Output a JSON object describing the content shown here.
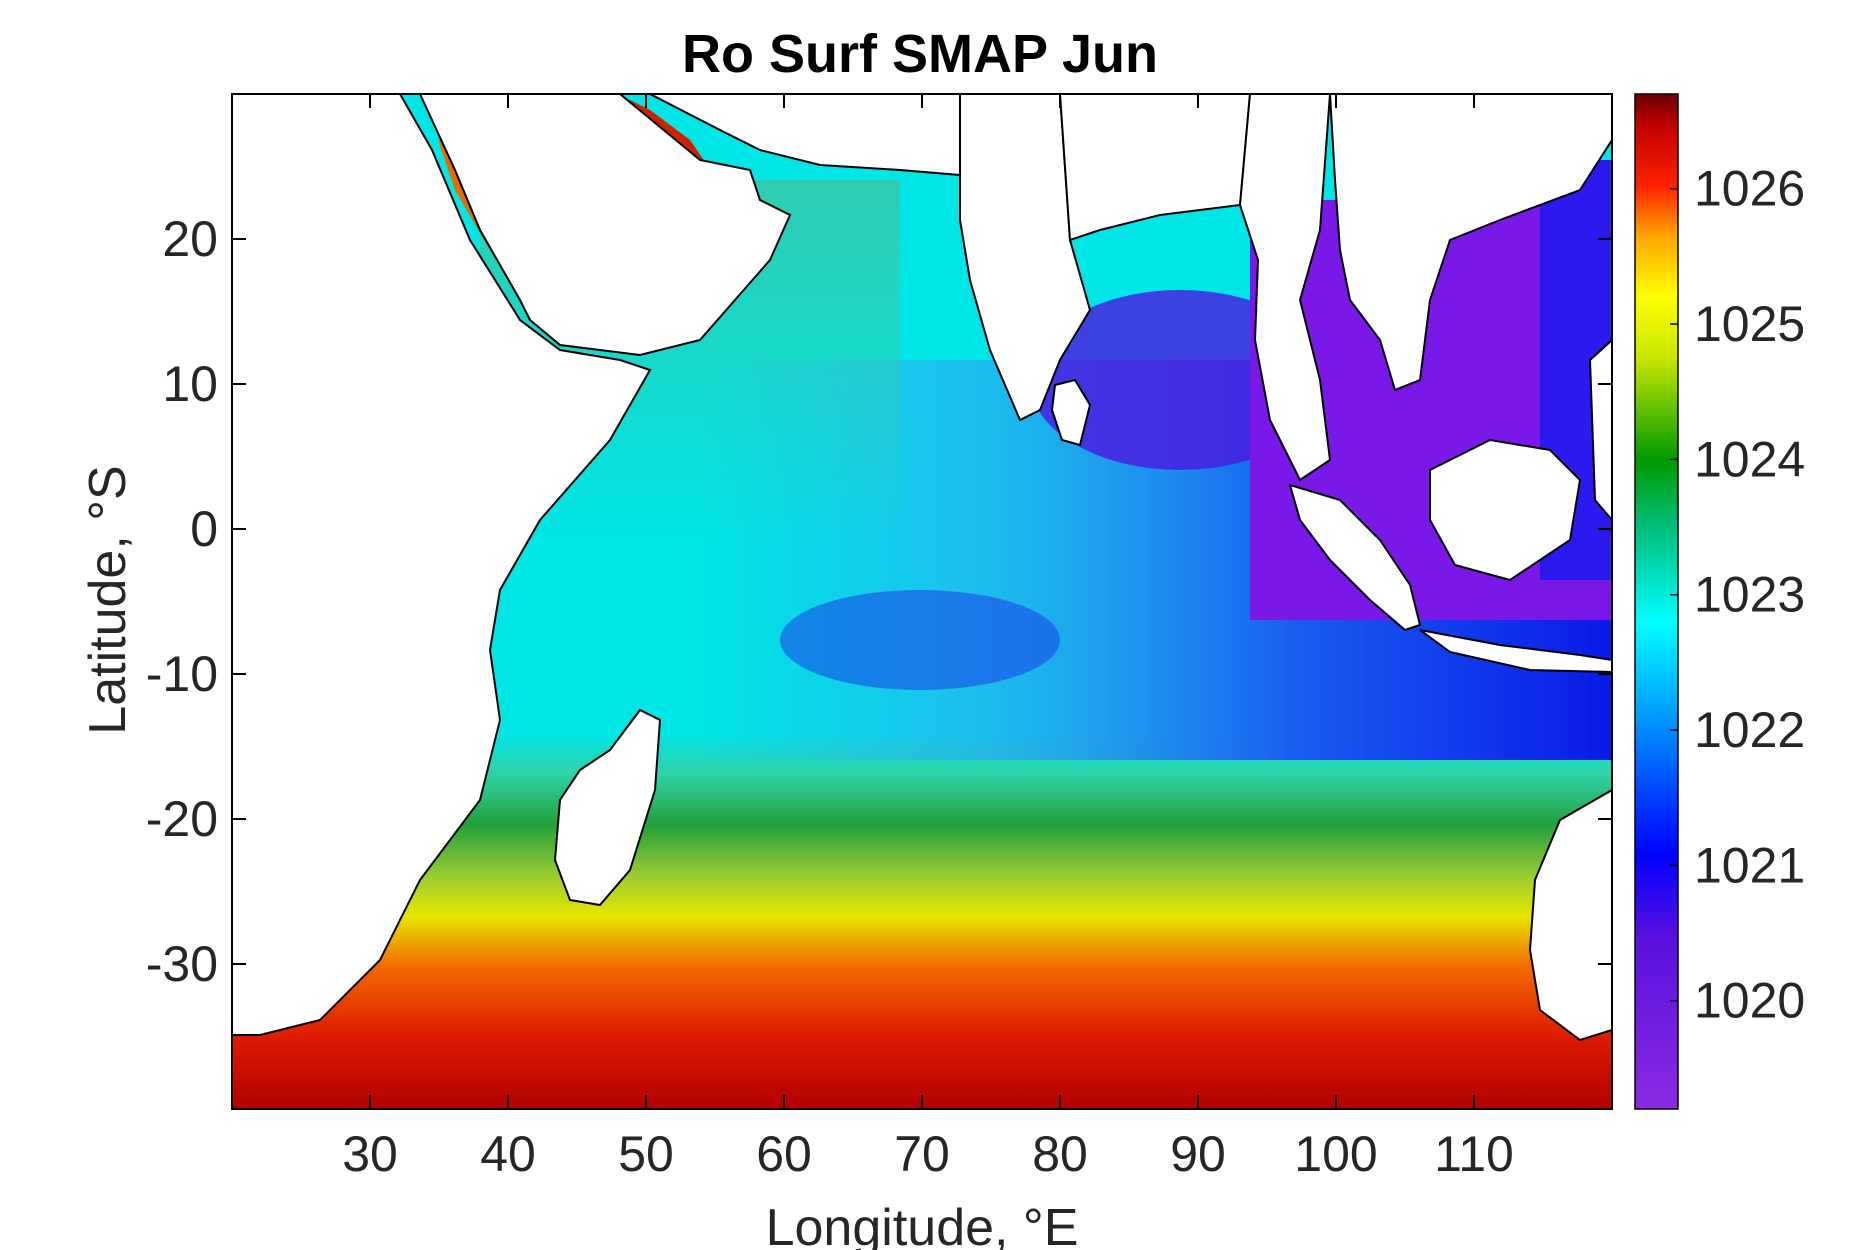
{
  "chart_data": {
    "type": "heatmap",
    "title": "Ro Surf SMAP Jun",
    "xlabel": "Longitude, °E",
    "ylabel": "Latitude, °S",
    "xlim": [
      20,
      120
    ],
    "ylim": [
      -40,
      30
    ],
    "xticks": [
      30,
      40,
      50,
      60,
      70,
      80,
      90,
      100,
      110
    ],
    "yticks": [
      -30,
      -20,
      -10,
      0,
      10,
      20
    ],
    "xtick_labels": [
      "30",
      "40",
      "50",
      "60",
      "70",
      "80",
      "90",
      "100",
      "110"
    ],
    "ytick_labels": [
      "-30",
      "-20",
      "-10",
      "0",
      "10",
      "20"
    ],
    "colorbar": {
      "range": [
        1019.2,
        1026.7
      ],
      "ticks": [
        1020,
        1021,
        1022,
        1023,
        1024,
        1025,
        1026
      ],
      "tick_labels": [
        "1020",
        "1021",
        "1022",
        "1023",
        "1024",
        "1025",
        "1026"
      ]
    },
    "colormap": [
      "#8a2be2",
      "#0000ff",
      "#00ffff",
      "#00a000",
      "#ffff00",
      "#ff0000",
      "#6b0000"
    ],
    "grid": false
  }
}
